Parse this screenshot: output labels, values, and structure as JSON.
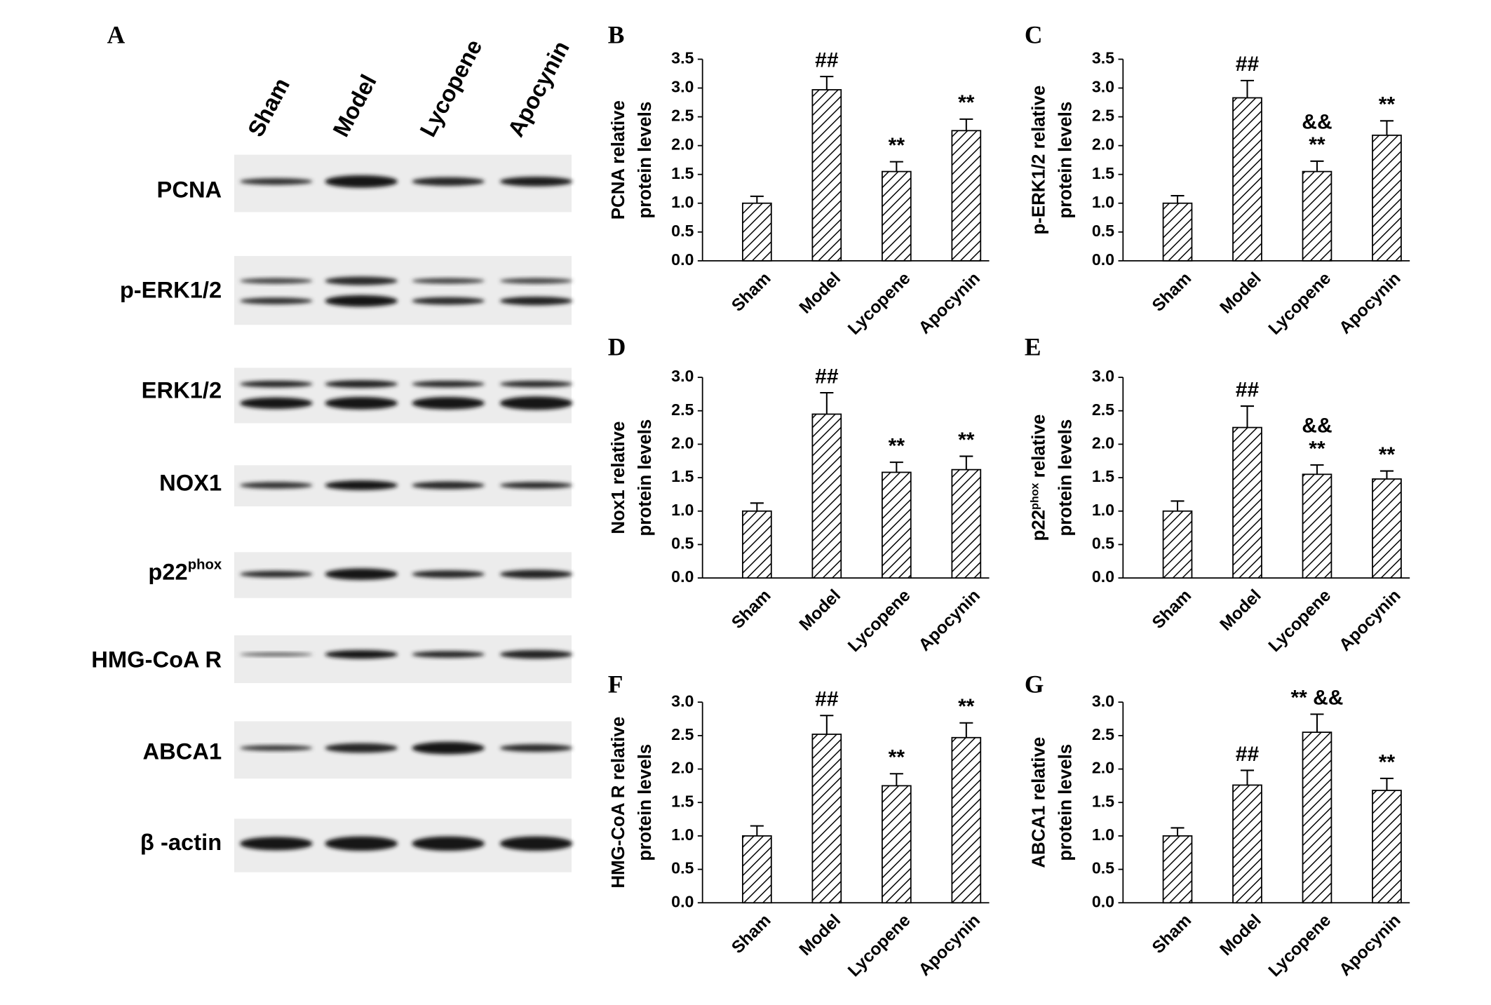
{
  "blot": {
    "panel_label": "A",
    "lanes": [
      "Sham",
      "Model",
      "Lycopene",
      "Apocynin"
    ],
    "rows": [
      [
        {
          "text": "PCNA"
        }
      ],
      [
        {
          "text": "p-ERK1/2"
        }
      ],
      [
        {
          "text": "ERK1/2"
        }
      ],
      [
        {
          "text": "NOX1"
        }
      ],
      [
        {
          "text": "p22"
        },
        {
          "text": "phox",
          "sup": true
        }
      ],
      [
        {
          "text": "HMG-CoA R"
        }
      ],
      [
        {
          "text": "ABCA1"
        }
      ],
      [
        {
          "text": "β -actin"
        }
      ]
    ]
  },
  "chart_data": [
    {
      "type": "bar",
      "panel_label": "B",
      "ylabel": [
        [
          {
            "text": "PCNA relative"
          }
        ],
        [
          {
            "text": "protein levels"
          }
        ]
      ],
      "categories": [
        "Sham",
        "Model",
        "Lycopene",
        "Apocynin"
      ],
      "values": [
        1.0,
        2.97,
        1.55,
        2.26
      ],
      "errors": [
        0.12,
        0.23,
        0.17,
        0.2
      ],
      "annotations": [
        [],
        [
          "##"
        ],
        [
          "**"
        ],
        [
          "**"
        ]
      ],
      "color": "#000000",
      "ylim": [
        0,
        3.5
      ],
      "yticks": [
        {
          "value": 0,
          "label": "0.0"
        },
        0.5,
        {
          "value": 1,
          "label": "1.0"
        },
        1.5,
        {
          "value": 2,
          "label": "2.0"
        },
        2.5,
        {
          "value": 3,
          "label": "3.0"
        },
        3.5
      ]
    },
    {
      "type": "bar",
      "panel_label": "C",
      "ylabel": [
        [
          {
            "text": "p-ERK1/2 relative"
          }
        ],
        [
          {
            "text": "protein levels"
          }
        ]
      ],
      "categories": [
        "Sham",
        "Model",
        "Lycopene",
        "Apocynin"
      ],
      "values": [
        1.0,
        2.83,
        1.55,
        2.18
      ],
      "errors": [
        0.13,
        0.3,
        0.18,
        0.25
      ],
      "annotations": [
        [],
        [
          "##"
        ],
        [
          "&&",
          "**"
        ],
        [
          "**"
        ]
      ],
      "color": "#000000",
      "ylim": [
        0,
        3.5
      ],
      "yticks": [
        {
          "value": 0,
          "label": "0.0"
        },
        0.5,
        {
          "value": 1,
          "label": "1.0"
        },
        1.5,
        {
          "value": 2,
          "label": "2.0"
        },
        2.5,
        {
          "value": 3,
          "label": "3.0"
        },
        3.5
      ]
    },
    {
      "type": "bar",
      "panel_label": "D",
      "ylabel": [
        [
          {
            "text": "Nox1 relative"
          }
        ],
        [
          {
            "text": "protein levels"
          }
        ]
      ],
      "categories": [
        "Sham",
        "Model",
        "Lycopene",
        "Apocynin"
      ],
      "values": [
        1.0,
        2.45,
        1.58,
        1.62
      ],
      "errors": [
        0.12,
        0.32,
        0.15,
        0.2
      ],
      "annotations": [
        [],
        [
          "##"
        ],
        [
          "**"
        ],
        [
          "**"
        ]
      ],
      "color": "#000000",
      "ylim": [
        0,
        3
      ],
      "yticks": [
        {
          "value": 0,
          "label": "0.0"
        },
        0.5,
        {
          "value": 1,
          "label": "1.0"
        },
        1.5,
        {
          "value": 2,
          "label": "2.0"
        },
        2.5,
        {
          "value": 3,
          "label": "3.0"
        }
      ]
    },
    {
      "type": "bar",
      "panel_label": "E",
      "ylabel": [
        [
          {
            "text": "p22"
          },
          {
            "text": "phox",
            "sup": true
          },
          {
            "text": " relative"
          }
        ],
        [
          {
            "text": "protein levels"
          }
        ]
      ],
      "categories": [
        "Sham",
        "Model",
        "Lycopene",
        "Apocynin"
      ],
      "values": [
        1.0,
        2.25,
        1.55,
        1.48
      ],
      "errors": [
        0.15,
        0.32,
        0.14,
        0.12
      ],
      "annotations": [
        [],
        [
          "##"
        ],
        [
          "&&",
          "**"
        ],
        [
          "**"
        ]
      ],
      "color": "#000000",
      "ylim": [
        0,
        3
      ],
      "yticks": [
        {
          "value": 0,
          "label": "0.0"
        },
        0.5,
        {
          "value": 1,
          "label": "1.0"
        },
        1.5,
        {
          "value": 2,
          "label": "2.0"
        },
        2.5,
        {
          "value": 3,
          "label": "3.0"
        }
      ]
    },
    {
      "type": "bar",
      "panel_label": "F",
      "ylabel": [
        [
          {
            "text": "HMG-CoA R relative"
          }
        ],
        [
          {
            "text": "protein levels"
          }
        ]
      ],
      "categories": [
        "Sham",
        "Model",
        "Lycopene",
        "Apocynin"
      ],
      "values": [
        1.0,
        2.52,
        1.75,
        2.47
      ],
      "errors": [
        0.15,
        0.28,
        0.18,
        0.22
      ],
      "annotations": [
        [],
        [
          "##"
        ],
        [
          "**"
        ],
        [
          "**"
        ]
      ],
      "color": "#000000",
      "ylim": [
        0,
        3
      ],
      "yticks": [
        {
          "value": 0,
          "label": "0.0"
        },
        0.5,
        {
          "value": 1,
          "label": "1.0"
        },
        1.5,
        {
          "value": 2,
          "label": "2.0"
        },
        2.5,
        {
          "value": 3,
          "label": "3.0"
        }
      ]
    },
    {
      "type": "bar",
      "panel_label": "G",
      "ylabel": [
        [
          {
            "text": "ABCA1 relative"
          }
        ],
        [
          {
            "text": "protein levels"
          }
        ]
      ],
      "categories": [
        "Sham",
        "Model",
        "Lycopene",
        "Apocynin"
      ],
      "values": [
        1.0,
        1.76,
        2.55,
        1.68
      ],
      "errors": [
        0.12,
        0.22,
        0.27,
        0.18
      ],
      "annotations": [
        [],
        [
          "##"
        ],
        [
          "** &&"
        ],
        [
          "**"
        ]
      ],
      "color": "#000000",
      "ylim": [
        0,
        3
      ],
      "yticks": [
        {
          "value": 0,
          "label": "0.0"
        },
        0.5,
        {
          "value": 1,
          "label": "1.0"
        },
        1.5,
        {
          "value": 2,
          "label": "2.0"
        },
        2.5,
        {
          "value": 3,
          "label": "3.0"
        }
      ]
    }
  ]
}
